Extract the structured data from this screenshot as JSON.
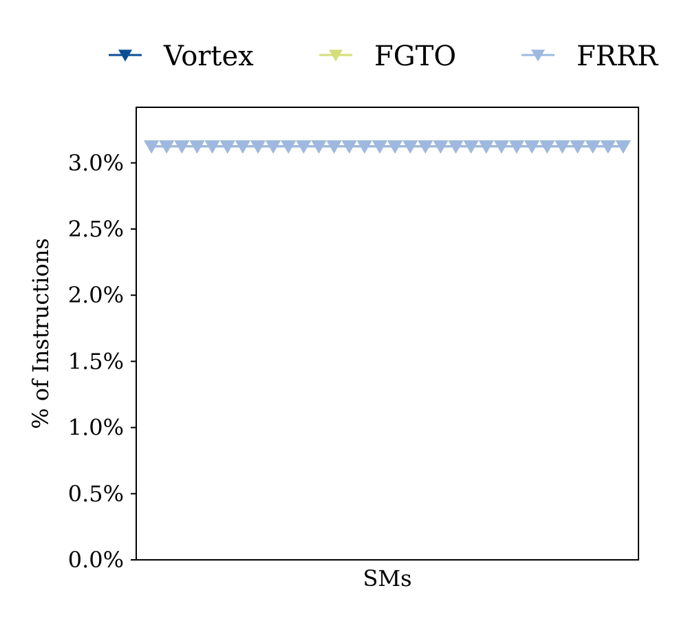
{
  "chart_data": {
    "type": "line",
    "title": "",
    "xlabel": "SMs",
    "ylabel": "% of Instructions",
    "ylim": [
      0.0,
      3.42
    ],
    "yticks": [
      0.0,
      0.5,
      1.0,
      1.5,
      2.0,
      2.5,
      3.0
    ],
    "ytick_labels": [
      "0.0%",
      "0.5%",
      "1.0%",
      "1.5%",
      "2.0%",
      "2.5%",
      "3.0%"
    ],
    "x": [
      1,
      2,
      3,
      4,
      5,
      6,
      7,
      8,
      9,
      10,
      11,
      12,
      13,
      14,
      15,
      16,
      17,
      18,
      19,
      20,
      21,
      22,
      23,
      24,
      25,
      26,
      27,
      28,
      29,
      30,
      31,
      32
    ],
    "xlim": [
      0,
      33
    ],
    "x_ticks_shown": false,
    "grid": false,
    "legend_position": "top",
    "series": [
      {
        "name": "Vortex",
        "color": "#0b4f96",
        "marker": "triangle-down",
        "values": [
          3.125,
          3.125,
          3.125,
          3.125,
          3.125,
          3.125,
          3.125,
          3.125,
          3.125,
          3.125,
          3.125,
          3.125,
          3.125,
          3.125,
          3.125,
          3.125,
          3.125,
          3.125,
          3.125,
          3.125,
          3.125,
          3.125,
          3.125,
          3.125,
          3.125,
          3.125,
          3.125,
          3.125,
          3.125,
          3.125,
          3.125,
          3.125
        ]
      },
      {
        "name": "FGTO",
        "color": "#d4df7a",
        "marker": "triangle-down",
        "values": [
          3.125,
          3.125,
          3.125,
          3.125,
          3.125,
          3.125,
          3.125,
          3.125,
          3.125,
          3.125,
          3.125,
          3.125,
          3.125,
          3.125,
          3.125,
          3.125,
          3.125,
          3.125,
          3.125,
          3.125,
          3.125,
          3.125,
          3.125,
          3.125,
          3.125,
          3.125,
          3.125,
          3.125,
          3.125,
          3.125,
          3.125,
          3.125
        ]
      },
      {
        "name": "FRRR",
        "color": "#9fb8e0",
        "marker": "triangle-down",
        "values": [
          3.125,
          3.125,
          3.125,
          3.125,
          3.125,
          3.125,
          3.125,
          3.125,
          3.125,
          3.125,
          3.125,
          3.125,
          3.125,
          3.125,
          3.125,
          3.125,
          3.125,
          3.125,
          3.125,
          3.125,
          3.125,
          3.125,
          3.125,
          3.125,
          3.125,
          3.125,
          3.125,
          3.125,
          3.125,
          3.125,
          3.125,
          3.125
        ]
      }
    ]
  }
}
